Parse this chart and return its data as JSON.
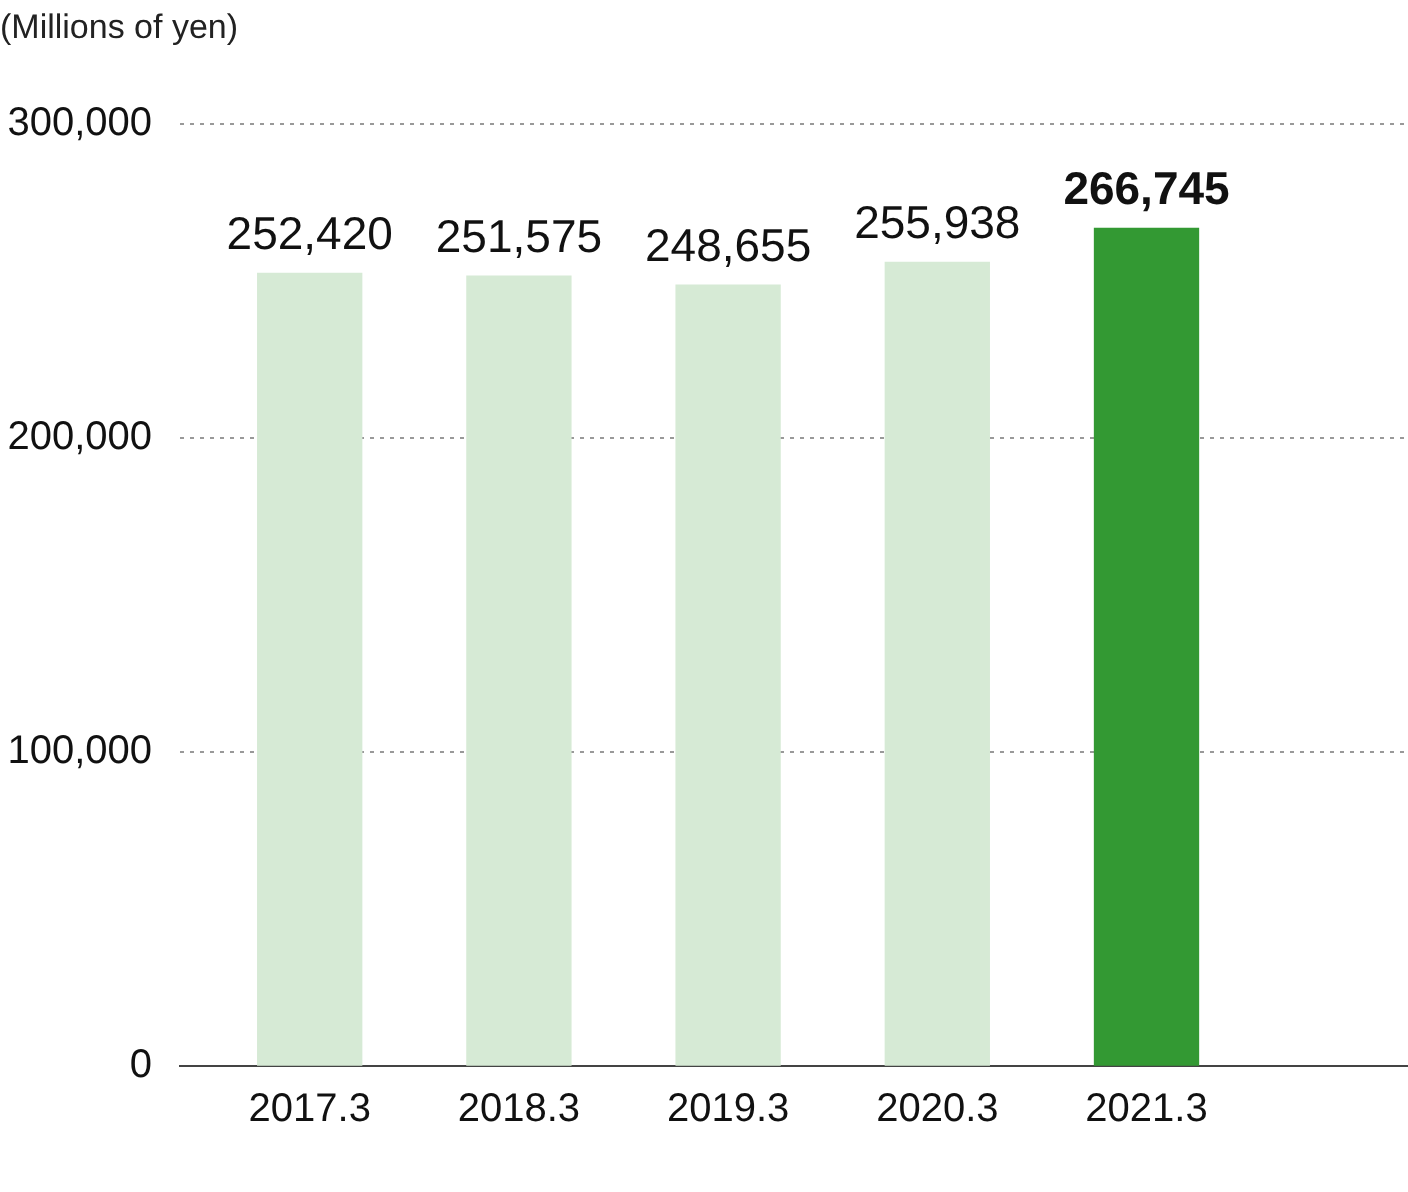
{
  "chart_data": {
    "type": "bar",
    "ylabel": "(Millions of yen)",
    "categories": [
      "2017.3",
      "2018.3",
      "2019.3",
      "2020.3",
      "2021.3"
    ],
    "values": [
      252420,
      251575,
      248655,
      255938,
      266745
    ],
    "colors": [
      "#d6ead5",
      "#d6ead5",
      "#d6ead5",
      "#d6ead5",
      "#339933"
    ],
    "value_labels": [
      "252,420",
      "251,575",
      "248,655",
      "255,938",
      "266,745"
    ],
    "ylim": [
      0,
      300000
    ],
    "yticks": [
      0,
      {
        "value": 100000,
        "label": "100,000"
      },
      {
        "value": 200000,
        "label": "200,000"
      },
      {
        "value": 300000,
        "label": "300,000"
      }
    ],
    "grid": "y"
  }
}
